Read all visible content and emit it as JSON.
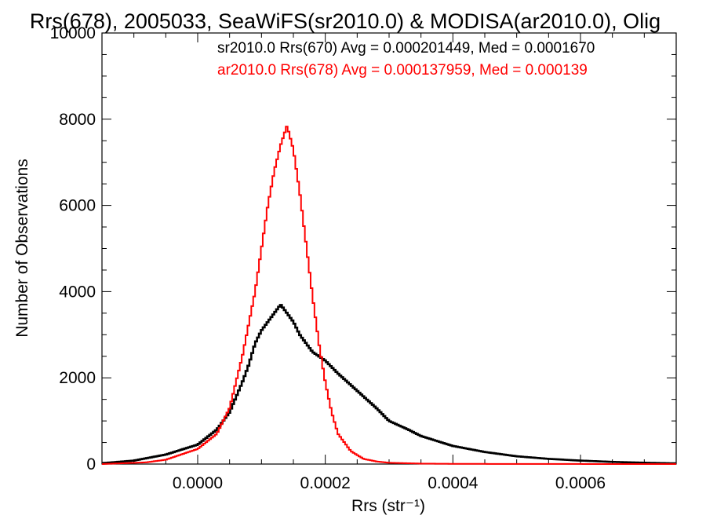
{
  "chart_data": {
    "type": "line",
    "title": "Rrs(678), 2005033, SeaWiFS(sr2010.0) & MODISA(ar2010.0), Olig",
    "xlabel": "Rrs (str⁻¹)",
    "ylabel": "Number of Observations",
    "xlim": [
      -0.00015,
      0.00075
    ],
    "ylim": [
      0,
      10000
    ],
    "xticks": [
      0.0,
      0.0002,
      0.0004,
      0.0006
    ],
    "xtick_labels": [
      "0.0000",
      "0.0002",
      "0.0004",
      "0.0006"
    ],
    "yticks": [
      0,
      2000,
      4000,
      6000,
      8000,
      10000
    ],
    "ytick_labels": [
      "0",
      "2000",
      "4000",
      "6000",
      "8000",
      "10000"
    ],
    "grid": false,
    "legend": [
      {
        "text": "sr2010.0 Rrs(670) Avg = 0.000201449, Med = 0.0001670",
        "color": "#000000"
      },
      {
        "text": "ar2010.0 Rrs(678) Avg = 0.000137959, Med = 0.000139",
        "color": "#ff0000"
      }
    ],
    "series": [
      {
        "color": "#000000",
        "points": [
          [
            -0.00015,
            20
          ],
          [
            -0.0001,
            80
          ],
          [
            -5e-05,
            220
          ],
          [
            0.0,
            450
          ],
          [
            3e-05,
            800
          ],
          [
            5e-05,
            1200
          ],
          [
            7e-05,
            1900
          ],
          [
            8e-05,
            2300
          ],
          [
            9e-05,
            2800
          ],
          [
            0.0001,
            3100
          ],
          [
            0.00011,
            3300
          ],
          [
            0.00012,
            3500
          ],
          [
            0.00013,
            3700
          ],
          [
            0.00014,
            3500
          ],
          [
            0.00015,
            3300
          ],
          [
            0.00016,
            3000
          ],
          [
            0.00017,
            2800
          ],
          [
            0.00018,
            2600
          ],
          [
            0.0002,
            2400
          ],
          [
            0.00022,
            2100
          ],
          [
            0.00025,
            1700
          ],
          [
            0.00028,
            1300
          ],
          [
            0.0003,
            1000
          ],
          [
            0.00033,
            800
          ],
          [
            0.00035,
            650
          ],
          [
            0.0004,
            420
          ],
          [
            0.00045,
            280
          ],
          [
            0.0005,
            180
          ],
          [
            0.00055,
            120
          ],
          [
            0.0006,
            80
          ],
          [
            0.00065,
            50
          ],
          [
            0.0007,
            30
          ],
          [
            0.00075,
            15
          ]
        ]
      },
      {
        "color": "#ff0000",
        "points": [
          [
            -0.00015,
            0
          ],
          [
            -8e-05,
            40
          ],
          [
            -5e-05,
            100
          ],
          [
            0.0,
            350
          ],
          [
            3e-05,
            700
          ],
          [
            5e-05,
            1300
          ],
          [
            7e-05,
            2500
          ],
          [
            9e-05,
            4000
          ],
          [
            0.0001,
            5000
          ],
          [
            0.00011,
            6000
          ],
          [
            0.00012,
            6800
          ],
          [
            0.00013,
            7400
          ],
          [
            0.00014,
            7850
          ],
          [
            0.00015,
            7300
          ],
          [
            0.00016,
            6300
          ],
          [
            0.00017,
            5100
          ],
          [
            0.00018,
            3900
          ],
          [
            0.00019,
            2800
          ],
          [
            0.0002,
            1900
          ],
          [
            0.00021,
            1200
          ],
          [
            0.00022,
            700
          ],
          [
            0.00024,
            300
          ],
          [
            0.00026,
            120
          ],
          [
            0.00028,
            60
          ],
          [
            0.0003,
            30
          ],
          [
            0.00035,
            10
          ],
          [
            0.0004,
            5
          ],
          [
            0.0005,
            2
          ],
          [
            0.00075,
            0
          ]
        ]
      }
    ]
  }
}
